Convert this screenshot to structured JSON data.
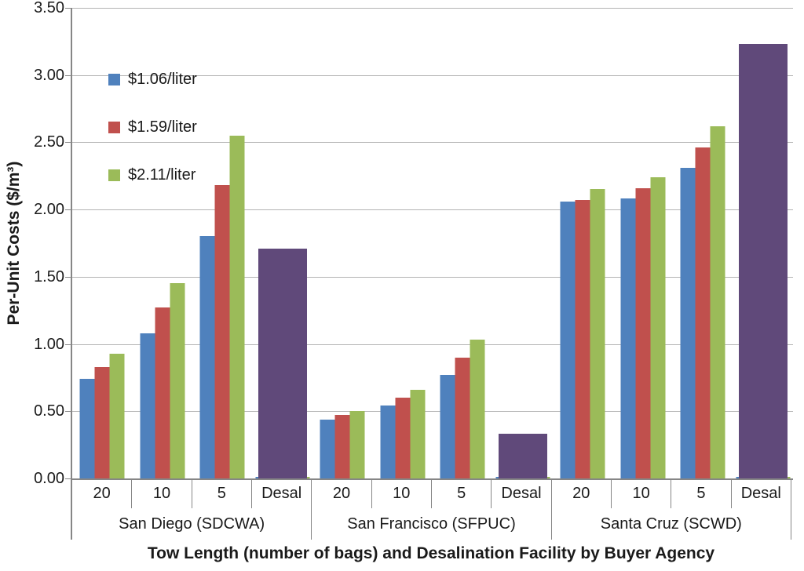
{
  "chart_data": {
    "type": "bar",
    "title": "",
    "xlabel": "Tow Length (number of bags) and Desalination Facility by Buyer Agency",
    "ylabel": "Per-Unit Costs ($/m³)",
    "ylim": [
      0,
      3.5
    ],
    "ytick_step": 0.5,
    "yticks": [
      "3.50",
      "3.00",
      "2.50",
      "2.00",
      "1.50",
      "1.00",
      "0.50",
      "0.00"
    ],
    "grid": true,
    "legend_position": "top-left-inside",
    "series_names": [
      "$1.06/liter",
      "$1.59/liter",
      "$2.11/liter"
    ],
    "series_colors": [
      "#4F81BD",
      "#C0504D",
      "#9BBB59"
    ],
    "desal_series_name": "Desal",
    "desal_color": "#60497A",
    "groups": [
      {
        "label": "San Diego (SDCWA)",
        "categories": [
          {
            "label": "20",
            "values": [
              0.74,
              0.83,
              0.93
            ]
          },
          {
            "label": "10",
            "values": [
              1.08,
              1.27,
              1.45
            ]
          },
          {
            "label": "5",
            "values": [
              1.8,
              2.18,
              2.55
            ]
          },
          {
            "label": "Desal",
            "values": [
              0.01,
              0.01,
              0.01
            ],
            "desal": 1.71
          }
        ]
      },
      {
        "label": "San Francisco (SFPUC)",
        "categories": [
          {
            "label": "20",
            "values": [
              0.44,
              0.47,
              0.5
            ]
          },
          {
            "label": "10",
            "values": [
              0.54,
              0.6,
              0.66
            ]
          },
          {
            "label": "5",
            "values": [
              0.77,
              0.9,
              1.03
            ]
          },
          {
            "label": "Desal",
            "values": [
              0.01,
              0.01,
              0.01
            ],
            "desal": 0.33
          }
        ]
      },
      {
        "label": "Santa Cruz (SCWD)",
        "categories": [
          {
            "label": "20",
            "values": [
              2.06,
              2.07,
              2.15
            ]
          },
          {
            "label": "10",
            "values": [
              2.08,
              2.16,
              2.24
            ]
          },
          {
            "label": "5",
            "values": [
              2.31,
              2.46,
              2.62
            ]
          },
          {
            "label": "Desal",
            "values": [
              0.01,
              0.01,
              0.01
            ],
            "desal": 3.23
          }
        ]
      }
    ]
  }
}
